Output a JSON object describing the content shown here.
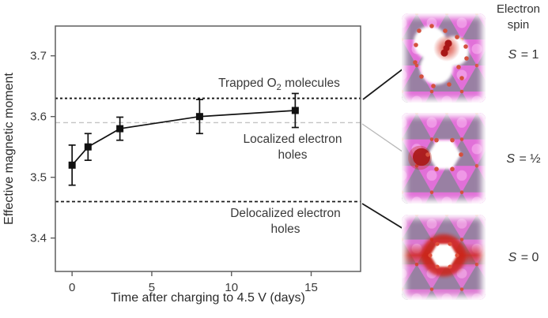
{
  "chart_data": {
    "type": "line",
    "x": [
      0,
      1,
      3,
      8,
      14
    ],
    "series": [
      {
        "name": "Effective magnetic moment",
        "values": [
          3.52,
          3.55,
          3.58,
          3.6,
          3.61
        ],
        "errors": [
          0.033,
          0.022,
          0.019,
          0.028,
          0.028
        ],
        "color": "#111111",
        "marker": "square"
      }
    ],
    "xlabel": "Time after charging to 4.5 V (days)",
    "ylabel": "Effective magnetic moment",
    "xticks": [
      0,
      5,
      10,
      15
    ],
    "yticks": [
      3.4,
      3.5,
      3.6,
      3.7
    ],
    "xlim": [
      -1.05,
      18.1
    ],
    "ylim": [
      3.345,
      3.749
    ],
    "grid": false,
    "legend": "none",
    "reference_lines": [
      {
        "value": 3.63,
        "label_pre": "Trapped O",
        "label_sub": "2",
        "label_post": " molecules",
        "color": "#1c1c1c",
        "dash": "3,3",
        "width": 2
      },
      {
        "value": 3.59,
        "label": "Localized electron holes",
        "color": "#c4c4c4",
        "dash": "6,4",
        "width": 1.4
      },
      {
        "value": 3.46,
        "label": "Delocalized electron holes",
        "color": "#1c1c1c",
        "dash": "4,3",
        "width": 1.8
      }
    ]
  },
  "right_panel": {
    "heading": "Electron spin",
    "items": [
      {
        "symbol": "S",
        "value": "= 1",
        "structure": "vacancy-cluster-with-trapped-O2"
      },
      {
        "symbol": "S",
        "value": "= ½",
        "structure": "vacancy-with-localized-hole"
      },
      {
        "symbol": "S",
        "value": "= 0",
        "structure": "vacancy-with-delocalized-holes"
      }
    ]
  },
  "colors": {
    "lattice_magenta": "#e170d8",
    "lattice_purple": "#93819f",
    "oxygen_red": "#d4503e",
    "electron_density_red": "#c22417",
    "axis_gray": "#5e5e5e",
    "gray_reference": "#c4c4c4"
  }
}
